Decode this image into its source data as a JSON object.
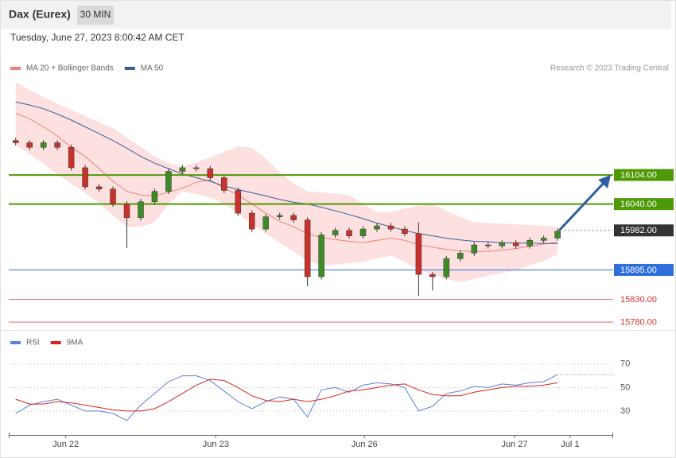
{
  "chart_data": [
    {
      "type": "candlestick",
      "title": "Dax (Eurex)",
      "interval": "30 MIN",
      "subtitle": "Tuesday, June 27, 2023 8:00:42 AM CET",
      "source": "Research © 2023 Trading Central",
      "up_color": "#3d8b25",
      "down_color": "#c8322b",
      "xlim": [
        -0.5,
        43
      ],
      "ylim": [
        15768,
        16323
      ],
      "open": [
        16180,
        16175,
        16165,
        16175,
        16165,
        16120,
        16078,
        16073,
        16040,
        16010,
        16045,
        16068,
        16112,
        16120,
        16118,
        16098,
        16070,
        16020,
        15985,
        16012,
        16015,
        16005,
        15880,
        15972,
        15982,
        15970,
        15985,
        15992,
        15985,
        15975,
        15885,
        15880,
        15920,
        15932,
        15950,
        15948,
        15955,
        15948,
        15960,
        15965
      ],
      "high": [
        16186,
        16181,
        16181,
        16181,
        16171,
        16126,
        16084,
        16079,
        16046,
        16051,
        16074,
        16118,
        16126,
        16126,
        16124,
        16104,
        16076,
        16026,
        16018,
        16021,
        16021,
        16011,
        15978,
        15988,
        15988,
        15991,
        15998,
        15998,
        15991,
        16000,
        15891,
        15926,
        15938,
        15956,
        15956,
        15961,
        15961,
        15966,
        15971,
        15986
      ],
      "low": [
        16169,
        16159,
        16159,
        16159,
        16114,
        16072,
        16067,
        16034,
        15943,
        16004,
        16039,
        16062,
        16106,
        16112,
        16092,
        16064,
        16014,
        15979,
        15979,
        16006,
        15999,
        15859,
        15874,
        15966,
        15964,
        15964,
        15979,
        15979,
        15969,
        15838,
        15850,
        15874,
        15914,
        15926,
        15942,
        15942,
        15942,
        15942,
        15954,
        15959
      ],
      "close": [
        16175,
        16165,
        16175,
        16165,
        16120,
        16078,
        16073,
        16040,
        16010,
        16045,
        16068,
        16112,
        16120,
        16118,
        16098,
        16070,
        16020,
        15985,
        16012,
        16015,
        16005,
        15880,
        15972,
        15982,
        15970,
        15985,
        15992,
        15985,
        15975,
        15885,
        15880,
        15920,
        15932,
        15950,
        15948,
        15955,
        15948,
        15960,
        15965,
        15980
      ],
      "overlays": [
        {
          "name": "MA 20 + Bollinger Bands",
          "color": "#f0807a",
          "band_color": "#fde0e0",
          "upper": [
            16309,
            16292,
            16275,
            16261,
            16247,
            16234,
            16220,
            16207,
            16186,
            16166,
            16145,
            16130,
            16122,
            16132,
            16143,
            16155,
            16167,
            16164,
            16140,
            16110,
            16085,
            16068,
            16066,
            16063,
            16060,
            16041,
            16022,
            16022,
            16030,
            16037,
            16040,
            16025,
            16012,
            16000,
            15998,
            15997,
            15995,
            15994,
            15992,
            15990
          ],
          "lower": [
            16170,
            16150,
            16128,
            16106,
            16085,
            16065,
            16042,
            16015,
            15990,
            15990,
            16000,
            16040,
            16068,
            16062,
            16055,
            16040,
            16020,
            15995,
            15975,
            15955,
            15935,
            15915,
            15905,
            15907,
            15910,
            15913,
            15920,
            15927,
            15912,
            15895,
            15885,
            15875,
            15868,
            15875,
            15882,
            15888,
            15894,
            15905,
            15915,
            15929
          ],
          "values": [
            16240,
            16228,
            16210,
            16190,
            16165,
            16145,
            16118,
            16090,
            16068,
            16060,
            16058,
            16066,
            16075,
            16088,
            16093,
            16075,
            16060,
            16040,
            16020,
            16002,
            15990,
            15975,
            15966,
            15962,
            15958,
            15955,
            15960,
            15965,
            15960,
            15950,
            15945,
            15940,
            15937,
            15935,
            15936,
            15938,
            15942,
            15947,
            15952,
            15956
          ]
        },
        {
          "name": "MA 50",
          "color": "#3b5e99",
          "values": [
            16265,
            16258,
            16250,
            16238,
            16225,
            16210,
            16195,
            16180,
            16163,
            16145,
            16130,
            16118,
            16106,
            16098,
            16090,
            16080,
            16072,
            16065,
            16058,
            16050,
            16044,
            16040,
            16033,
            16025,
            16017,
            16008,
            15998,
            15990,
            15982,
            15975,
            15970,
            15965,
            15961,
            15958,
            15957,
            15955,
            15954,
            15954,
            15953,
            15953
          ]
        }
      ],
      "levels": [
        {
          "value": 16104,
          "label": "16104.00",
          "color": "#4e9a06",
          "box": true,
          "style": "solid"
        },
        {
          "value": 16040,
          "label": "16040.00",
          "color": "#4e9a06",
          "box": true,
          "style": "solid"
        },
        {
          "value": 15982,
          "label": "15982.00",
          "color": "#333333",
          "box": true,
          "style": "dotted"
        },
        {
          "value": 15895,
          "label": "15895.00",
          "color": "#2f6fdc",
          "box": true,
          "style": "solid"
        },
        {
          "value": 15830,
          "label": "15830.00",
          "color": "#e03030",
          "box": false,
          "style": "solid"
        },
        {
          "value": 15780,
          "label": "15780.00",
          "color": "#e03030",
          "box": false,
          "style": "solid"
        }
      ]
    },
    {
      "type": "line",
      "xlim": [
        -0.5,
        43
      ],
      "ylim": [
        10,
        80
      ],
      "yticks": [
        30,
        50,
        70
      ],
      "grid": true,
      "xticks": [
        {
          "value": 3.6,
          "label": "Jun 22"
        },
        {
          "value": 14.4,
          "label": "Jun 23"
        },
        {
          "value": 25.1,
          "label": "Jun 26"
        },
        {
          "value": 35.9,
          "label": "Jun 27"
        },
        {
          "value": 39.9,
          "label": "Jul 1"
        }
      ],
      "series": [
        {
          "name": "RSI",
          "color": "#5b7fdb",
          "values": [
            28,
            35,
            38,
            40,
            35,
            30,
            30,
            28,
            22,
            35,
            45,
            55,
            60,
            60,
            56,
            47,
            38,
            32,
            38,
            42,
            40,
            25,
            48,
            50,
            46,
            52,
            54,
            53,
            50,
            30,
            34,
            45,
            47,
            51,
            50,
            53,
            52,
            54,
            55,
            61
          ]
        },
        {
          "name": "9MA",
          "color": "#dd2222",
          "values": [
            40,
            36,
            36,
            38,
            37,
            35,
            33,
            31,
            30,
            30,
            32,
            38,
            45,
            52,
            57,
            56,
            50,
            43,
            39,
            38,
            40,
            38,
            40,
            43,
            47,
            48,
            50,
            52,
            53,
            48,
            44,
            43,
            43,
            46,
            48,
            50,
            51,
            51,
            52,
            54
          ]
        }
      ]
    }
  ]
}
